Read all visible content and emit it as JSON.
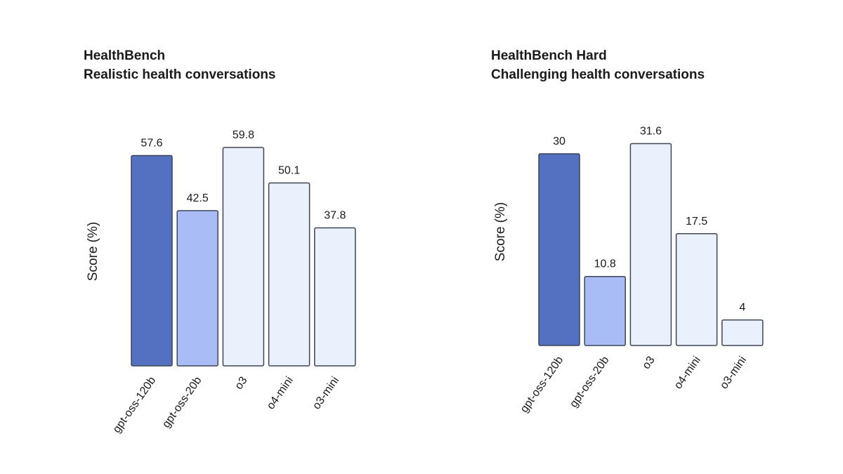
{
  "chart_data": [
    {
      "type": "bar",
      "title": "HealthBench",
      "subtitle": "Realistic health conversations",
      "ylabel": "Score (%)",
      "xlabel": "",
      "ylim": [
        0,
        60
      ],
      "grid": false,
      "categories": [
        "gpt-oss-120b",
        "gpt-oss-20b",
        "o3",
        "o4-mini",
        "o3-mini"
      ],
      "values": [
        57.6,
        42.5,
        59.8,
        50.1,
        37.8
      ],
      "value_labels": [
        "57.6",
        "42.5",
        "59.8",
        "50.1",
        "37.8"
      ],
      "colors": [
        "#5470c0",
        "#a9bcf5",
        "#eaf0fc",
        "#eaf0fc",
        "#eaf0fc"
      ]
    },
    {
      "type": "bar",
      "title": "HealthBench Hard",
      "subtitle": "Challenging health conversations",
      "ylabel": "Score (%)",
      "xlabel": "",
      "ylim": [
        0,
        32
      ],
      "grid": false,
      "categories": [
        "gpt-oss-120b",
        "gpt-oss-20b",
        "o3",
        "o4-mini",
        "o3-mini"
      ],
      "values": [
        30,
        10.8,
        31.6,
        17.5,
        4
      ],
      "value_labels": [
        "30",
        "10.8",
        "31.6",
        "17.5",
        "4"
      ],
      "colors": [
        "#5470c0",
        "#a9bcf5",
        "#eaf0fc",
        "#eaf0fc",
        "#eaf0fc"
      ]
    }
  ],
  "style": {
    "bar_outline": "#3d4654",
    "text_color": "#1a1a1a"
  }
}
